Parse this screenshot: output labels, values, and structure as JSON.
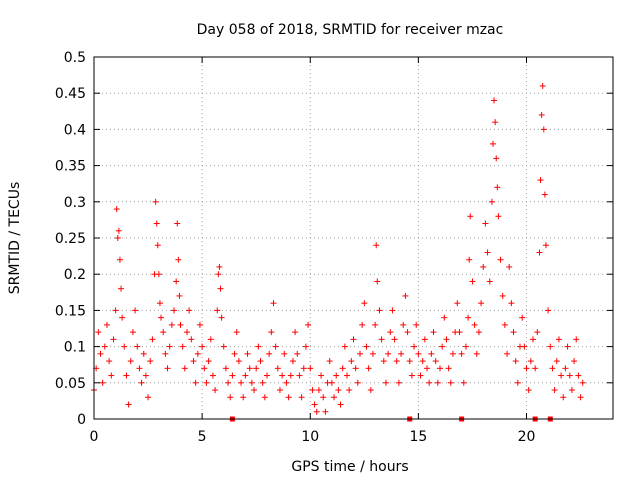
{
  "chart_data": {
    "type": "scatter",
    "title": "Day 058 of 2018, SRMTID for receiver mzac",
    "xlabel": "GPS time / hours",
    "ylabel": "SRMTID / TECUs",
    "xlim": [
      0,
      24
    ],
    "ylim": [
      0,
      0.5
    ],
    "x_ticks": [
      0,
      5,
      10,
      15,
      20
    ],
    "x_tick_labels": [
      "0",
      "5",
      "10",
      "15",
      "20"
    ],
    "y_ticks": [
      0,
      0.05,
      0.1,
      0.15,
      0.2,
      0.25,
      0.3,
      0.35,
      0.4,
      0.45,
      0.5
    ],
    "y_tick_labels": [
      "0",
      "0.05",
      "0.1",
      "0.15",
      "0.2",
      "0.25",
      "0.3",
      "0.35",
      "0.4",
      "0.45",
      "0.5"
    ],
    "grid": true,
    "series_color": "#ff0000",
    "marker": "plus",
    "series": [
      {
        "name": "SRMTID",
        "points": [
          [
            0.0,
            0.04
          ],
          [
            0.1,
            0.07
          ],
          [
            0.2,
            0.12
          ],
          [
            0.3,
            0.09
          ],
          [
            0.4,
            0.05
          ],
          [
            0.5,
            0.1
          ],
          [
            0.6,
            0.13
          ],
          [
            0.7,
            0.08
          ],
          [
            0.8,
            0.06
          ],
          [
            0.9,
            0.11
          ],
          [
            1.0,
            0.15
          ],
          [
            1.05,
            0.29
          ],
          [
            1.1,
            0.25
          ],
          [
            1.15,
            0.26
          ],
          [
            1.2,
            0.22
          ],
          [
            1.25,
            0.18
          ],
          [
            1.3,
            0.14
          ],
          [
            1.4,
            0.1
          ],
          [
            1.5,
            0.06
          ],
          [
            1.6,
            0.02
          ],
          [
            1.7,
            0.08
          ],
          [
            1.8,
            0.12
          ],
          [
            1.9,
            0.15
          ],
          [
            2.0,
            0.1
          ],
          [
            2.1,
            0.07
          ],
          [
            2.2,
            0.05
          ],
          [
            2.3,
            0.09
          ],
          [
            2.4,
            0.06
          ],
          [
            2.5,
            0.03
          ],
          [
            2.6,
            0.08
          ],
          [
            2.7,
            0.11
          ],
          [
            2.8,
            0.2
          ],
          [
            2.85,
            0.3
          ],
          [
            2.9,
            0.27
          ],
          [
            2.95,
            0.24
          ],
          [
            3.0,
            0.2
          ],
          [
            3.05,
            0.16
          ],
          [
            3.1,
            0.14
          ],
          [
            3.2,
            0.12
          ],
          [
            3.3,
            0.09
          ],
          [
            3.4,
            0.07
          ],
          [
            3.5,
            0.1
          ],
          [
            3.6,
            0.13
          ],
          [
            3.7,
            0.15
          ],
          [
            3.8,
            0.19
          ],
          [
            3.85,
            0.27
          ],
          [
            3.9,
            0.22
          ],
          [
            3.95,
            0.17
          ],
          [
            4.0,
            0.13
          ],
          [
            4.1,
            0.1
          ],
          [
            4.2,
            0.07
          ],
          [
            4.3,
            0.12
          ],
          [
            4.4,
            0.15
          ],
          [
            4.5,
            0.11
          ],
          [
            4.6,
            0.08
          ],
          [
            4.7,
            0.05
          ],
          [
            4.8,
            0.09
          ],
          [
            4.9,
            0.13
          ],
          [
            5.0,
            0.1
          ],
          [
            5.1,
            0.07
          ],
          [
            5.2,
            0.05
          ],
          [
            5.3,
            0.08
          ],
          [
            5.4,
            0.11
          ],
          [
            5.5,
            0.06
          ],
          [
            5.6,
            0.04
          ],
          [
            5.7,
            0.15
          ],
          [
            5.75,
            0.2
          ],
          [
            5.8,
            0.21
          ],
          [
            5.85,
            0.18
          ],
          [
            5.9,
            0.14
          ],
          [
            6.0,
            0.1
          ],
          [
            6.1,
            0.07
          ],
          [
            6.2,
            0.05
          ],
          [
            6.3,
            0.03
          ],
          [
            6.4,
            0.06
          ],
          [
            6.5,
            0.09
          ],
          [
            6.6,
            0.12
          ],
          [
            6.7,
            0.08
          ],
          [
            6.8,
            0.05
          ],
          [
            6.9,
            0.03
          ],
          [
            7.0,
            0.06
          ],
          [
            7.1,
            0.09
          ],
          [
            7.2,
            0.07
          ],
          [
            7.3,
            0.05
          ],
          [
            7.4,
            0.04
          ],
          [
            7.5,
            0.07
          ],
          [
            7.6,
            0.1
          ],
          [
            7.7,
            0.08
          ],
          [
            7.8,
            0.05
          ],
          [
            7.9,
            0.03
          ],
          [
            8.0,
            0.06
          ],
          [
            8.1,
            0.09
          ],
          [
            8.2,
            0.12
          ],
          [
            8.3,
            0.16
          ],
          [
            8.4,
            0.1
          ],
          [
            8.5,
            0.07
          ],
          [
            8.6,
            0.04
          ],
          [
            8.7,
            0.06
          ],
          [
            8.8,
            0.09
          ],
          [
            8.9,
            0.05
          ],
          [
            9.0,
            0.03
          ],
          [
            9.1,
            0.06
          ],
          [
            9.2,
            0.08
          ],
          [
            9.3,
            0.12
          ],
          [
            9.4,
            0.09
          ],
          [
            9.5,
            0.06
          ],
          [
            9.6,
            0.03
          ],
          [
            9.7,
            0.07
          ],
          [
            9.8,
            0.1
          ],
          [
            9.9,
            0.13
          ],
          [
            10.0,
            0.07
          ],
          [
            10.1,
            0.04
          ],
          [
            10.2,
            0.02
          ],
          [
            10.3,
            0.01
          ],
          [
            10.4,
            0.04
          ],
          [
            10.5,
            0.06
          ],
          [
            10.6,
            0.03
          ],
          [
            10.7,
            0.01
          ],
          [
            10.8,
            0.05
          ],
          [
            10.9,
            0.08
          ],
          [
            11.0,
            0.05
          ],
          [
            11.1,
            0.03
          ],
          [
            11.2,
            0.06
          ],
          [
            11.3,
            0.04
          ],
          [
            11.4,
            0.02
          ],
          [
            11.5,
            0.07
          ],
          [
            11.6,
            0.1
          ],
          [
            11.7,
            0.06
          ],
          [
            11.8,
            0.04
          ],
          [
            11.9,
            0.08
          ],
          [
            12.0,
            0.11
          ],
          [
            12.1,
            0.07
          ],
          [
            12.2,
            0.05
          ],
          [
            12.3,
            0.09
          ],
          [
            12.4,
            0.13
          ],
          [
            12.5,
            0.16
          ],
          [
            12.6,
            0.1
          ],
          [
            12.7,
            0.07
          ],
          [
            12.8,
            0.04
          ],
          [
            12.9,
            0.09
          ],
          [
            13.0,
            0.13
          ],
          [
            13.05,
            0.24
          ],
          [
            13.1,
            0.19
          ],
          [
            13.2,
            0.15
          ],
          [
            13.3,
            0.11
          ],
          [
            13.4,
            0.08
          ],
          [
            13.5,
            0.05
          ],
          [
            13.6,
            0.09
          ],
          [
            13.7,
            0.12
          ],
          [
            13.8,
            0.15
          ],
          [
            13.9,
            0.11
          ],
          [
            14.0,
            0.08
          ],
          [
            14.1,
            0.05
          ],
          [
            14.2,
            0.09
          ],
          [
            14.3,
            0.13
          ],
          [
            14.4,
            0.17
          ],
          [
            14.5,
            0.12
          ],
          [
            14.6,
            0.08
          ],
          [
            14.7,
            0.06
          ],
          [
            14.8,
            0.1
          ],
          [
            14.9,
            0.13
          ],
          [
            15.0,
            0.09
          ],
          [
            15.1,
            0.06
          ],
          [
            15.2,
            0.08
          ],
          [
            15.3,
            0.11
          ],
          [
            15.4,
            0.07
          ],
          [
            15.5,
            0.05
          ],
          [
            15.6,
            0.09
          ],
          [
            15.7,
            0.12
          ],
          [
            15.8,
            0.08
          ],
          [
            15.9,
            0.05
          ],
          [
            16.0,
            0.07
          ],
          [
            16.1,
            0.1
          ],
          [
            16.2,
            0.14
          ],
          [
            16.3,
            0.11
          ],
          [
            16.4,
            0.07
          ],
          [
            16.5,
            0.05
          ],
          [
            16.6,
            0.09
          ],
          [
            16.7,
            0.12
          ],
          [
            16.8,
            0.16
          ],
          [
            16.9,
            0.12
          ],
          [
            17.0,
            0.09
          ],
          [
            17.1,
            0.05
          ],
          [
            17.2,
            0.1
          ],
          [
            17.3,
            0.14
          ],
          [
            17.35,
            0.22
          ],
          [
            17.4,
            0.28
          ],
          [
            17.5,
            0.19
          ],
          [
            17.6,
            0.13
          ],
          [
            17.7,
            0.09
          ],
          [
            17.8,
            0.12
          ],
          [
            17.9,
            0.16
          ],
          [
            18.0,
            0.21
          ],
          [
            18.1,
            0.27
          ],
          [
            18.2,
            0.23
          ],
          [
            18.3,
            0.19
          ],
          [
            18.4,
            0.3
          ],
          [
            18.45,
            0.38
          ],
          [
            18.5,
            0.44
          ],
          [
            18.55,
            0.41
          ],
          [
            18.6,
            0.36
          ],
          [
            18.65,
            0.32
          ],
          [
            18.7,
            0.28
          ],
          [
            18.8,
            0.22
          ],
          [
            18.9,
            0.17
          ],
          [
            19.0,
            0.13
          ],
          [
            19.1,
            0.09
          ],
          [
            19.2,
            0.21
          ],
          [
            19.3,
            0.16
          ],
          [
            19.4,
            0.12
          ],
          [
            19.5,
            0.08
          ],
          [
            19.6,
            0.05
          ],
          [
            19.7,
            0.1
          ],
          [
            19.8,
            0.14
          ],
          [
            19.9,
            0.1
          ],
          [
            20.0,
            0.07
          ],
          [
            20.1,
            0.04
          ],
          [
            20.2,
            0.08
          ],
          [
            20.3,
            0.11
          ],
          [
            20.4,
            0.07
          ],
          [
            20.5,
            0.12
          ],
          [
            20.6,
            0.23
          ],
          [
            20.65,
            0.33
          ],
          [
            20.7,
            0.42
          ],
          [
            20.75,
            0.46
          ],
          [
            20.8,
            0.4
          ],
          [
            20.85,
            0.31
          ],
          [
            20.9,
            0.24
          ],
          [
            21.0,
            0.15
          ],
          [
            21.1,
            0.1
          ],
          [
            21.2,
            0.07
          ],
          [
            21.3,
            0.04
          ],
          [
            21.4,
            0.08
          ],
          [
            21.5,
            0.11
          ],
          [
            21.6,
            0.06
          ],
          [
            21.7,
            0.03
          ],
          [
            21.8,
            0.07
          ],
          [
            21.9,
            0.1
          ],
          [
            22.0,
            0.06
          ],
          [
            22.1,
            0.04
          ],
          [
            22.2,
            0.08
          ],
          [
            22.3,
            0.11
          ],
          [
            22.4,
            0.06
          ],
          [
            22.5,
            0.03
          ],
          [
            22.6,
            0.05
          ]
        ]
      }
    ],
    "bottom_markers_x": [
      6.4,
      14.6,
      17.0,
      20.4,
      21.1
    ]
  }
}
